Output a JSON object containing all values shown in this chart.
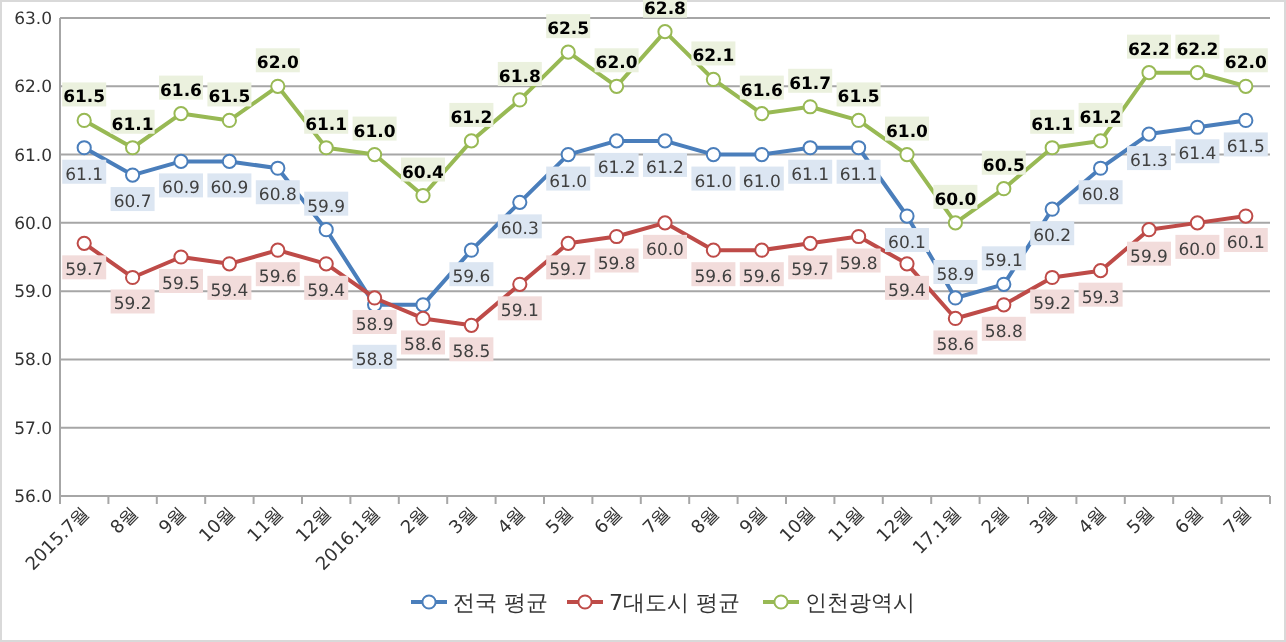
{
  "chart_data": {
    "type": "line",
    "categories": [
      "2015.7월",
      "8월",
      "9월",
      "10월",
      "11월",
      "12월",
      "2016.1월",
      "2월",
      "3월",
      "4월",
      "5월",
      "6월",
      "7월",
      "8월",
      "9월",
      "10월",
      "11월",
      "12월",
      "17.1월",
      "2월",
      "3월",
      "4월",
      "5월",
      "6월",
      "7월"
    ],
    "series": [
      {
        "name": "전국 평균",
        "color": "#4a7ebb",
        "values": [
          61.1,
          60.7,
          60.9,
          60.9,
          60.8,
          59.9,
          58.8,
          58.8,
          59.6,
          60.3,
          61.0,
          61.2,
          61.2,
          61.0,
          61.0,
          61.1,
          61.1,
          60.1,
          58.9,
          59.1,
          60.2,
          60.8,
          61.3,
          61.4,
          61.5
        ],
        "value_labels": [
          "61.1",
          "60.7",
          "60.9",
          "60.9",
          "60.8",
          "59.9",
          "58.8",
          null,
          "59.6",
          "60.3",
          "61.0",
          "61.2",
          "61.2",
          "61.0",
          "61.0",
          "61.1",
          "61.1",
          "60.1",
          "58.9",
          "59.1",
          "60.2",
          "60.8",
          "61.3",
          "61.4",
          "61.5"
        ]
      },
      {
        "name": "7대도시 평균",
        "color": "#be4b48",
        "values": [
          59.7,
          59.2,
          59.5,
          59.4,
          59.6,
          59.4,
          58.9,
          58.6,
          58.5,
          59.1,
          59.7,
          59.8,
          60.0,
          59.6,
          59.6,
          59.7,
          59.8,
          59.4,
          58.6,
          58.8,
          59.2,
          59.3,
          59.9,
          60.0,
          60.1
        ],
        "value_labels": [
          "59.7",
          "59.2",
          "59.5",
          "59.4",
          "59.6",
          "59.4",
          "58.9",
          "58.6",
          "58.5",
          "59.1",
          "59.7",
          "59.8",
          "60.0",
          "59.6",
          "59.6",
          "59.7",
          "59.8",
          "59.4",
          "58.6",
          "58.8",
          "59.2",
          "59.3",
          "59.9",
          "60.0",
          "60.1"
        ]
      },
      {
        "name": "인천광역시",
        "color": "#98b954",
        "values": [
          61.5,
          61.1,
          61.6,
          61.5,
          62.0,
          61.1,
          61.0,
          60.4,
          61.2,
          61.8,
          62.5,
          62.0,
          62.8,
          62.1,
          61.6,
          61.7,
          61.5,
          61.0,
          60.0,
          60.5,
          61.1,
          61.2,
          62.2,
          62.2,
          62.0
        ],
        "value_labels": [
          "61.5",
          "61.1",
          "61.6",
          "61.5",
          "62.0",
          "61.1",
          "61.0",
          "60.4",
          "61.2",
          "61.8",
          "62.5",
          "62.0",
          "62.8",
          "62.1",
          "61.6",
          "61.7",
          "61.5",
          "61.0",
          "60.0",
          "60.5",
          "61.1",
          "61.2",
          "62.2",
          "62.2",
          "62.0"
        ]
      }
    ],
    "ylim": [
      56.0,
      63.0
    ],
    "yticks": [
      {
        "value": 56,
        "label": "56.0"
      },
      {
        "value": 57,
        "label": "57.0"
      },
      {
        "value": 58,
        "label": "58.0"
      },
      {
        "value": 59,
        "label": "59.0"
      },
      {
        "value": 60,
        "label": "60.0"
      },
      {
        "value": 61,
        "label": "61.0"
      },
      {
        "value": 62,
        "label": "62.0"
      },
      {
        "value": 63,
        "label": "63.0"
      }
    ],
    "grid": "y",
    "legend": "bottom",
    "marker": "circle",
    "line_style": "solid"
  }
}
